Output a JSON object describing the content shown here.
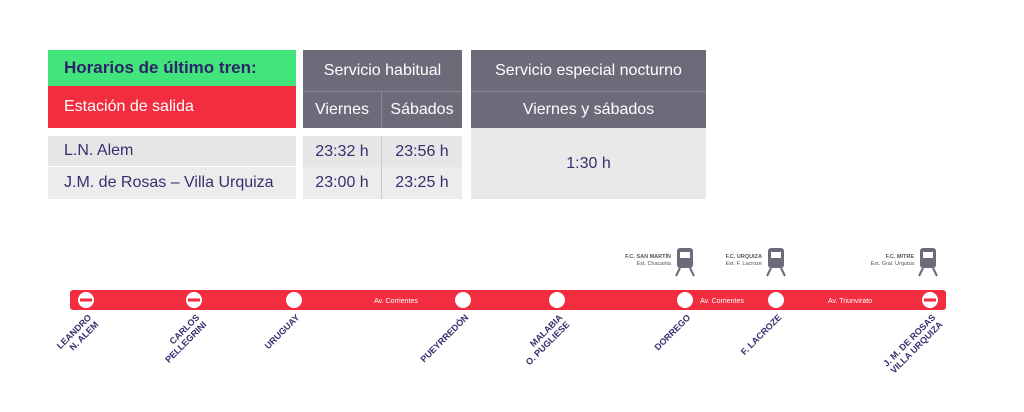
{
  "table": {
    "title": "Horarios de último tren:",
    "station_header": "Estación de salida",
    "groups": [
      "Servicio habitual",
      "Servicio especial nocturno"
    ],
    "days": [
      "Viernes",
      "Sábados",
      "Viernes y sábados"
    ],
    "rows": [
      [
        "L.N. Alem",
        "23:32 h",
        "23:56 h"
      ],
      [
        "J.M. de Rosas – Villa Urquiza",
        "23:00 h",
        "23:25 h"
      ]
    ],
    "special_time": "1:30 h"
  },
  "line": {
    "stations": [
      [
        "LEANDRO",
        "N. ALEM"
      ],
      [
        "CARLOS",
        "PELLEGRINI"
      ],
      [
        "URUGUAY"
      ],
      [
        "PUEYRREDÓN"
      ],
      [
        "MALABIA",
        "O. PUGLIESE"
      ],
      [
        "DORREGO"
      ],
      [
        "F. LACROZE"
      ],
      [
        "J. M. DE ROSAS",
        "VILLA URQUIZA"
      ]
    ],
    "streets": [
      "Av. Corrientes",
      "Av. Corrientes",
      "Av. Triunvirato"
    ],
    "connections": [
      [
        "F.C. SAN MARTÍN",
        "Est. Chacarita"
      ],
      [
        "F.C. URQUIZA",
        "Est. F. Lacroze"
      ],
      [
        "F.C. MITRE",
        "Est. Gral. Urquiza"
      ]
    ]
  }
}
